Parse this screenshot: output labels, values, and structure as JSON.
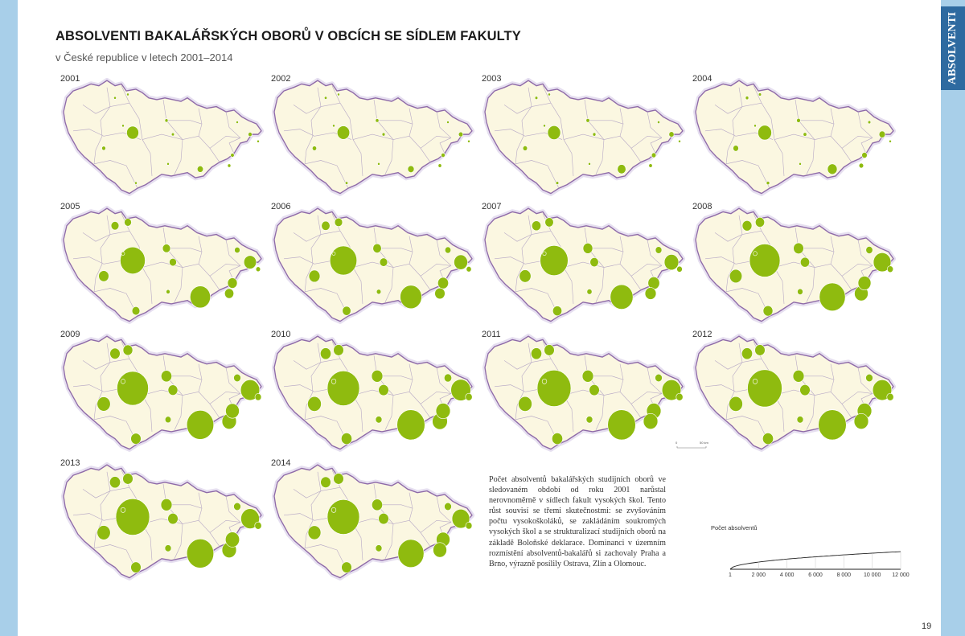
{
  "title": "ABSOLVENTI BAKALÁŘSKÝCH OBORŮ V OBCÍCH SE SÍDLEM FAKULTY",
  "subtitle": "v České republice v letech 2001–2014",
  "side_tab": "ABSOLVENTI",
  "page_number": "19",
  "description": "Počet absolventů bakalářských studijních oborů ve sledovaném období od roku 2001 narůstal nerovnoměrně v sídlech fakult vysokých škol. Tento růst souvisí se třemi skutečnostmi: se zvyšováním počtu vysokoškoláků, se zakládáním soukromých vysokých škol a se strukturalizací studijních oborů na základě Boloňské deklarace. Dominanci v územním rozmístění absolventů-bakalářů si zachovaly Praha a Brno, výrazně posílily Ostrava, Zlín a Olomouc.",
  "scale_bar": {
    "label_left": "0",
    "label_right": "50 km"
  },
  "legend": {
    "title": "Počet absolventů",
    "ticks": [
      "1",
      "2 000",
      "4 000",
      "6 000",
      "8 000",
      "10 000",
      "12 000"
    ]
  },
  "colors": {
    "circle": "#8fbb0f",
    "map_fill": "#fbf7e1",
    "border": "#8e6aa8",
    "region_line": "#b8aac6",
    "background_side": "#a8cfe9",
    "side_tab": "#2e6aa0"
  },
  "maps": [
    {
      "year": "2001",
      "cities": {
        "Praha": 1400,
        "Brno": 350,
        "Ostrava": 150,
        "Plzeň": 150,
        "Olomouc": 130,
        "Zlín": 100,
        "Liberec": 40,
        "Hradec Králové": 100,
        "Pardubice": 80,
        "Ústí nad Labem": 60,
        "České Budějovice": 60,
        "Opava": 40,
        "Karviná": 20,
        "Jihlava": 20,
        "Kladno": 10
      }
    },
    {
      "year": "2002",
      "cities": {
        "Praha": 1500,
        "Brno": 400,
        "Ostrava": 200,
        "Plzeň": 180,
        "Olomouc": 150,
        "Zlín": 110,
        "Liberec": 50,
        "Hradec Králové": 110,
        "Pardubice": 90,
        "Ústí nad Labem": 70,
        "České Budějovice": 70,
        "Opava": 50,
        "Karviná": 25,
        "Jihlava": 25,
        "Kladno": 10
      }
    },
    {
      "year": "2003",
      "cities": {
        "Praha": 1600,
        "Brno": 700,
        "Ostrava": 250,
        "Plzeň": 200,
        "Olomouc": 200,
        "Zlín": 120,
        "Liberec": 60,
        "Hradec Králové": 120,
        "Pardubice": 100,
        "Ústí nad Labem": 80,
        "České Budějovice": 80,
        "Opava": 60,
        "Karviná": 30,
        "Jihlava": 30,
        "Kladno": 10
      }
    },
    {
      "year": "2004",
      "cities": {
        "Praha": 1800,
        "Brno": 900,
        "Ostrava": 380,
        "Plzeň": 300,
        "Olomouc": 280,
        "Zlín": 200,
        "Liberec": 80,
        "Hradec Králové": 150,
        "Pardubice": 120,
        "Ústí nad Labem": 100,
        "České Budějovice": 100,
        "Opava": 80,
        "Karviná": 40,
        "Jihlava": 40,
        "Kladno": 20
      }
    },
    {
      "year": "2005",
      "cities": {
        "Praha": 6000,
        "Brno": 4000,
        "Ostrava": 1500,
        "Plzeň": 1000,
        "Olomouc": 900,
        "Zlín": 800,
        "Liberec": 500,
        "Hradec Králové": 600,
        "Pardubice": 500,
        "Ústí nad Labem": 600,
        "České Budějovice": 600,
        "Opava": 300,
        "Karviná": 200,
        "Jihlava": 150,
        "Kladno": 100
      }
    },
    {
      "year": "2006",
      "cities": {
        "Praha": 7000,
        "Brno": 4500,
        "Ostrava": 1800,
        "Plzeň": 1200,
        "Olomouc": 1100,
        "Zlín": 1000,
        "Liberec": 600,
        "Hradec Králové": 700,
        "Pardubice": 600,
        "Ústí nad Labem": 700,
        "České Budějovice": 700,
        "Opava": 350,
        "Karviná": 250,
        "Jihlava": 200,
        "Kladno": 100
      }
    },
    {
      "year": "2007",
      "cities": {
        "Praha": 7500,
        "Brno": 5000,
        "Ostrava": 2000,
        "Plzeň": 1300,
        "Olomouc": 1300,
        "Zlín": 1200,
        "Liberec": 700,
        "Hradec Králové": 900,
        "Pardubice": 700,
        "Ústí nad Labem": 800,
        "České Budějovice": 800,
        "Opava": 400,
        "Karviná": 300,
        "Jihlava": 250,
        "Kladno": 120
      }
    },
    {
      "year": "2008",
      "cities": {
        "Praha": 9000,
        "Brno": 6500,
        "Ostrava": 3000,
        "Plzeň": 1500,
        "Olomouc": 1600,
        "Zlín": 1800,
        "Liberec": 800,
        "Hradec Králové": 1000,
        "Pardubice": 800,
        "Ústí nad Labem": 900,
        "České Budějovice": 900,
        "Opava": 450,
        "Karviná": 350,
        "Jihlava": 300,
        "Kladno": 150
      }
    },
    {
      "year": "2009",
      "cities": {
        "Praha": 9500,
        "Brno": 7000,
        "Ostrava": 3500,
        "Plzeň": 1700,
        "Olomouc": 1800,
        "Zlín": 2000,
        "Liberec": 900,
        "Hradec Králové": 1100,
        "Pardubice": 900,
        "Ústí nad Labem": 1000,
        "České Budějovice": 1000,
        "Opava": 500,
        "Karviná": 400,
        "Jihlava": 350,
        "Kladno": 170
      }
    },
    {
      "year": "2010",
      "cities": {
        "Praha": 10000,
        "Brno": 7500,
        "Ostrava": 3800,
        "Plzeň": 1800,
        "Olomouc": 2000,
        "Zlín": 2200,
        "Liberec": 1000,
        "Hradec Králové": 1200,
        "Pardubice": 1000,
        "Ústí nad Labem": 1100,
        "České Budějovice": 1100,
        "Opava": 550,
        "Karviná": 450,
        "Jihlava": 400,
        "Kladno": 200
      }
    },
    {
      "year": "2011",
      "cities": {
        "Praha": 11000,
        "Brno": 7500,
        "Ostrava": 3500,
        "Plzeň": 1800,
        "Olomouc": 2000,
        "Zlín": 2000,
        "Liberec": 1000,
        "Hradec Králové": 1200,
        "Pardubice": 1000,
        "Ústí nad Labem": 1100,
        "České Budějovice": 1100,
        "Opava": 500,
        "Karviná": 450,
        "Jihlava": 400,
        "Kladno": 200
      }
    },
    {
      "year": "2012",
      "cities": {
        "Praha": 11500,
        "Brno": 7500,
        "Ostrava": 3500,
        "Plzeň": 1800,
        "Olomouc": 2000,
        "Zlín": 2000,
        "Liberec": 1000,
        "Hradec Králové": 1200,
        "Pardubice": 1000,
        "Ústí nad Labem": 1100,
        "České Budějovice": 1100,
        "Opava": 500,
        "Karviná": 450,
        "Jihlava": 400,
        "Kladno": 200
      }
    },
    {
      "year": "2013",
      "cities": {
        "Praha": 11000,
        "Brno": 7000,
        "Ostrava": 3300,
        "Plzeň": 1700,
        "Olomouc": 1900,
        "Zlín": 2000,
        "Liberec": 1000,
        "Hradec Králové": 1200,
        "Pardubice": 1000,
        "Ústí nad Labem": 1100,
        "České Budějovice": 1000,
        "Opava": 500,
        "Karviná": 450,
        "Jihlava": 400,
        "Kladno": 200
      }
    },
    {
      "year": "2014",
      "cities": {
        "Praha": 10000,
        "Brno": 6500,
        "Ostrava": 3000,
        "Plzeň": 1600,
        "Olomouc": 1800,
        "Zlín": 1800,
        "Liberec": 1000,
        "Hradec Králové": 1100,
        "Pardubice": 1000,
        "Ústí nad Labem": 1000,
        "České Budějovice": 1000,
        "Opava": 500,
        "Karviná": 400,
        "Jihlava": 400,
        "Kladno": 200
      }
    }
  ]
}
